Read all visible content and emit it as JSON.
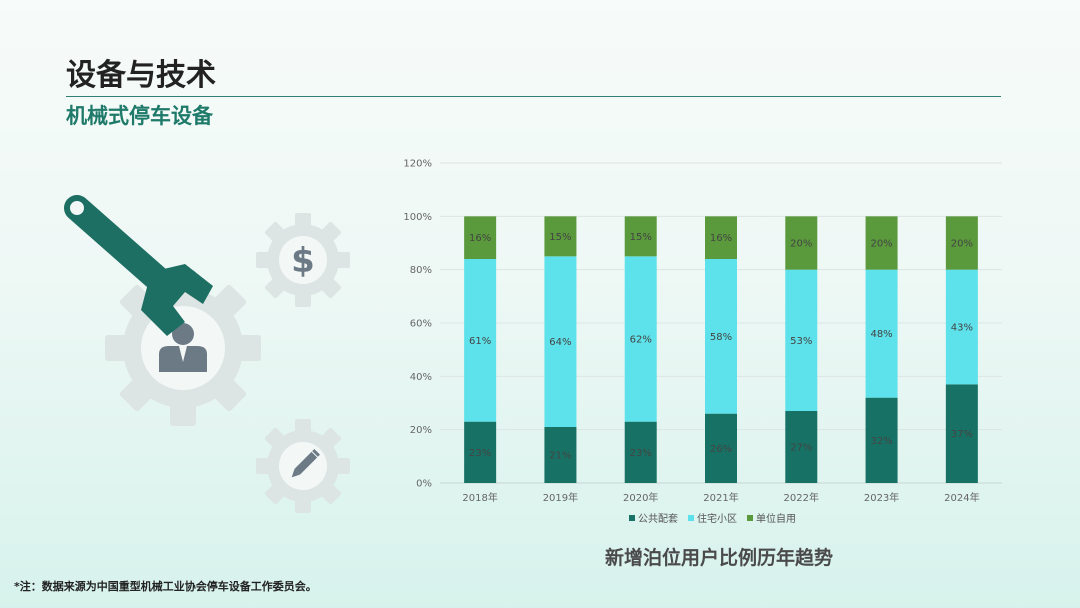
{
  "header": {
    "title": "设备与技术",
    "subtitle": "机械式停车设备"
  },
  "footnote": "*注：数据来源为中国重型机械工业协会停车设备工作委员会。",
  "chart_caption": "新增泊位用户比例历年趋势",
  "icons": {
    "wrench": "wrench-icon",
    "dollar_gear": "dollar-gear-icon",
    "user_gear": "user-gear-icon",
    "pencil_gear": "pencil-gear-icon"
  },
  "chart_data": {
    "type": "bar",
    "stacked": true,
    "categories": [
      "2018年",
      "2019年",
      "2020年",
      "2021年",
      "2022年",
      "2023年",
      "2024年"
    ],
    "series": [
      {
        "name": "公共配套",
        "color": "#177265",
        "values": [
          23,
          21,
          23,
          26,
          27,
          32,
          37
        ]
      },
      {
        "name": "住宅小区",
        "color": "#5de1ea",
        "values": [
          61,
          64,
          62,
          58,
          53,
          48,
          43
        ]
      },
      {
        "name": "单位自用",
        "color": "#5a9a3c",
        "values": [
          16,
          15,
          15,
          16,
          20,
          20,
          20
        ]
      }
    ],
    "ylim": [
      0,
      120
    ],
    "yticks": [
      "0%",
      "20%",
      "40%",
      "60%",
      "80%",
      "100%",
      "120%"
    ],
    "value_suffix": "%",
    "grid": true,
    "legend_position": "bottom"
  }
}
